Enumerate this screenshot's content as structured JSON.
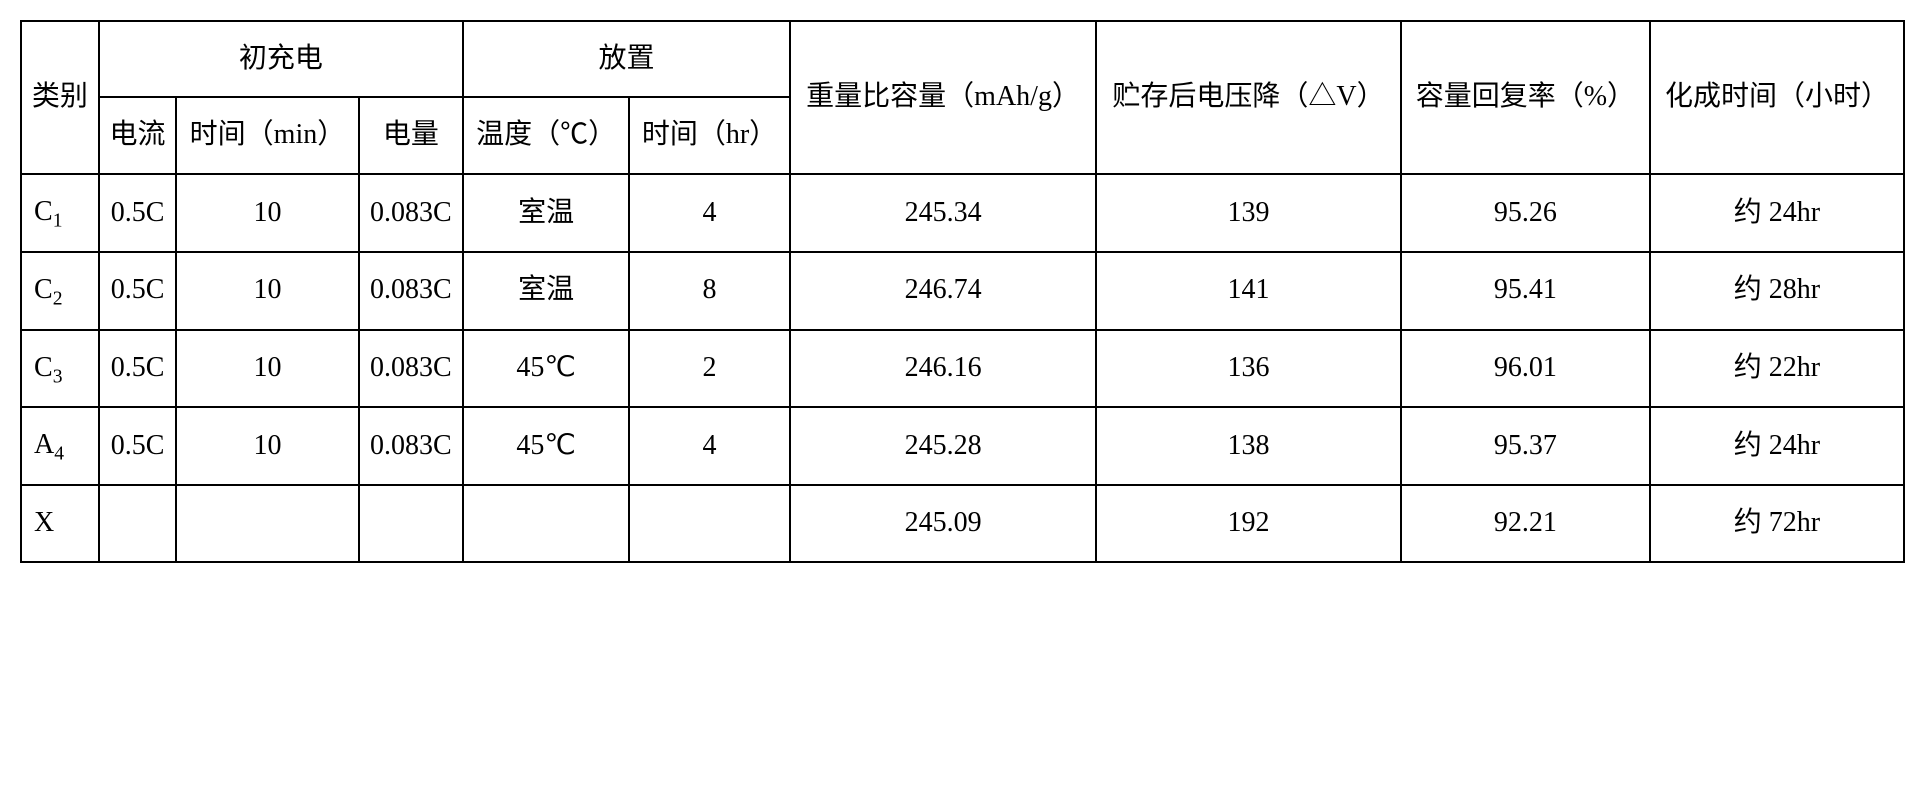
{
  "table": {
    "type": "table",
    "background_color": "#ffffff",
    "border_color": "#000000",
    "border_width": 2,
    "font_size": 28,
    "text_color": "#000000",
    "headers": {
      "category": "类别",
      "initial_charge": "初充电",
      "placement": "放置",
      "current": "电流",
      "time_min": "时间（min）",
      "capacity_charge": "电量",
      "temperature": "温度（℃）",
      "time_hr": "时间（hr）",
      "weight_capacity": "重量比容量（mAh/g）",
      "voltage_drop": "贮存后电压降（△V）",
      "recovery_rate": "容量回复率（%）",
      "formation_time": "化成时间（小时）"
    },
    "rows": [
      {
        "category_base": "C",
        "category_sub": "1",
        "current": "0.5C",
        "time_min": "10",
        "capacity_charge": "0.083C",
        "temperature": "室温",
        "time_hr": "4",
        "weight_capacity": "245.34",
        "voltage_drop": "139",
        "recovery_rate": "95.26",
        "formation_time": "约 24hr"
      },
      {
        "category_base": "C",
        "category_sub": "2",
        "current": "0.5C",
        "time_min": "10",
        "capacity_charge": "0.083C",
        "temperature": "室温",
        "time_hr": "8",
        "weight_capacity": "246.74",
        "voltage_drop": "141",
        "recovery_rate": "95.41",
        "formation_time": "约 28hr"
      },
      {
        "category_base": "C",
        "category_sub": "3",
        "current": "0.5C",
        "time_min": "10",
        "capacity_charge": "0.083C",
        "temperature": "45℃",
        "time_hr": "2",
        "weight_capacity": "246.16",
        "voltage_drop": "136",
        "recovery_rate": "96.01",
        "formation_time": "约 22hr"
      },
      {
        "category_base": "A",
        "category_sub": "4",
        "current": "0.5C",
        "time_min": "10",
        "capacity_charge": "0.083C",
        "temperature": "45℃",
        "time_hr": "4",
        "weight_capacity": "245.28",
        "voltage_drop": "138",
        "recovery_rate": "95.37",
        "formation_time": "约 24hr"
      },
      {
        "category_base": "X",
        "category_sub": "",
        "current": "",
        "time_min": "",
        "capacity_charge": "",
        "temperature": "",
        "time_hr": "",
        "weight_capacity": "245.09",
        "voltage_drop": "192",
        "recovery_rate": "92.21",
        "formation_time": "约 72hr"
      }
    ],
    "column_widths": [
      "5%",
      "6%",
      "9%",
      "10%",
      "8%",
      "8%",
      "15%",
      "14%",
      "10%",
      "15%"
    ]
  }
}
